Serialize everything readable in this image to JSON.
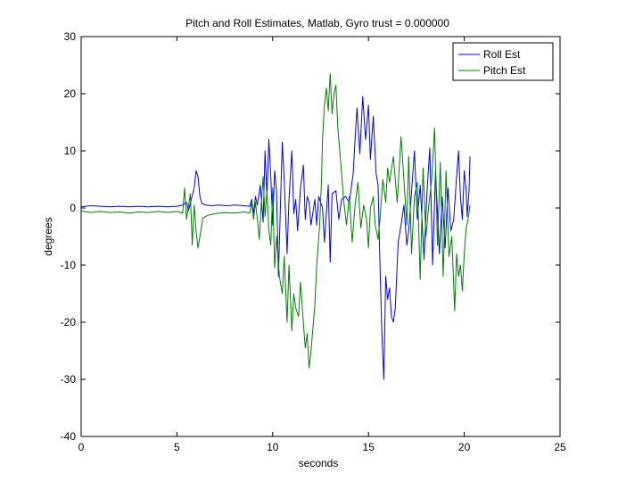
{
  "chart_data": {
    "type": "line",
    "title": "Pitch and Roll Estimates, Matlab, Gyro trust = 0.000000",
    "xlabel": "seconds",
    "ylabel": "degrees",
    "xlim": [
      0,
      25
    ],
    "ylim": [
      -40,
      30
    ],
    "xticks": [
      0,
      5,
      10,
      15,
      20,
      25
    ],
    "yticks": [
      -40,
      -30,
      -20,
      -10,
      0,
      10,
      20,
      30
    ],
    "grid": false,
    "legend_position": "top-right",
    "series": [
      {
        "name": "Roll Est",
        "color": "#0000ff",
        "points": [
          [
            0.0,
            0.2
          ],
          [
            0.5,
            0.4
          ],
          [
            1.0,
            0.3
          ],
          [
            1.5,
            0.2
          ],
          [
            2.0,
            0.3
          ],
          [
            2.5,
            0.2
          ],
          [
            3.0,
            0.3
          ],
          [
            3.5,
            0.2
          ],
          [
            4.0,
            0.3
          ],
          [
            4.5,
            0.2
          ],
          [
            5.0,
            0.3
          ],
          [
            5.3,
            0.5
          ],
          [
            5.5,
            1.0
          ],
          [
            5.6,
            -0.5
          ],
          [
            5.75,
            1.5
          ],
          [
            5.9,
            3.5
          ],
          [
            6.0,
            6.5
          ],
          [
            6.1,
            5.5
          ],
          [
            6.2,
            2.0
          ],
          [
            6.3,
            0.8
          ],
          [
            6.5,
            0.5
          ],
          [
            6.8,
            0.4
          ],
          [
            7.2,
            0.5
          ],
          [
            7.6,
            0.4
          ],
          [
            8.0,
            0.5
          ],
          [
            8.5,
            0.4
          ],
          [
            8.8,
            0.3
          ],
          [
            8.9,
            1.5
          ],
          [
            9.0,
            -1.0
          ],
          [
            9.1,
            2.0
          ],
          [
            9.2,
            0.5
          ],
          [
            9.35,
            4.0
          ],
          [
            9.5,
            -2.5
          ],
          [
            9.6,
            10.0
          ],
          [
            9.7,
            2.0
          ],
          [
            9.8,
            12.0
          ],
          [
            9.9,
            5.5
          ],
          [
            10.0,
            -3.0
          ],
          [
            10.1,
            6.5
          ],
          [
            10.2,
            3.0
          ],
          [
            10.3,
            -12.0
          ],
          [
            10.4,
            0.0
          ],
          [
            10.5,
            11.5
          ],
          [
            10.6,
            5.0
          ],
          [
            10.75,
            -8.0
          ],
          [
            10.85,
            1.5
          ],
          [
            11.0,
            10.0
          ],
          [
            11.1,
            -1.0
          ],
          [
            11.2,
            1.5
          ],
          [
            11.3,
            -4.0
          ],
          [
            11.45,
            3.5
          ],
          [
            11.6,
            7.5
          ],
          [
            11.7,
            -2.0
          ],
          [
            11.8,
            2.0
          ],
          [
            11.9,
            1.0
          ],
          [
            12.0,
            -3.0
          ],
          [
            12.2,
            1.5
          ],
          [
            12.3,
            -3.0
          ],
          [
            12.4,
            2.0
          ],
          [
            12.6,
            0.0
          ],
          [
            12.7,
            -6.0
          ],
          [
            12.9,
            4.0
          ],
          [
            13.0,
            -9.5
          ],
          [
            13.1,
            2.5
          ],
          [
            13.3,
            3.0
          ],
          [
            13.45,
            -2.0
          ],
          [
            13.6,
            1.5
          ],
          [
            13.8,
            2.0
          ],
          [
            14.0,
            1.0
          ],
          [
            14.2,
            6.0
          ],
          [
            14.3,
            12.0
          ],
          [
            14.4,
            17.5
          ],
          [
            14.55,
            9.5
          ],
          [
            14.7,
            19.5
          ],
          [
            14.85,
            12.0
          ],
          [
            15.0,
            18.0
          ],
          [
            15.1,
            8.5
          ],
          [
            15.25,
            16.0
          ],
          [
            15.4,
            6.0
          ],
          [
            15.5,
            4.0
          ],
          [
            15.6,
            -10.0
          ],
          [
            15.7,
            -22.0
          ],
          [
            15.8,
            -30.0
          ],
          [
            15.9,
            -12.0
          ],
          [
            16.0,
            -16.0
          ],
          [
            16.1,
            -14.0
          ],
          [
            16.2,
            -19.0
          ],
          [
            16.3,
            -20.0
          ],
          [
            16.4,
            -17.5
          ],
          [
            16.55,
            -6.0
          ],
          [
            16.7,
            -3.0
          ],
          [
            16.85,
            0.5
          ],
          [
            17.0,
            -6.5
          ],
          [
            17.1,
            -4.0
          ],
          [
            17.25,
            3.0
          ],
          [
            17.4,
            10.0
          ],
          [
            17.55,
            -2.0
          ],
          [
            17.7,
            4.0
          ],
          [
            17.9,
            -9.0
          ],
          [
            18.05,
            2.5
          ],
          [
            18.2,
            10.5
          ],
          [
            18.35,
            -10.0
          ],
          [
            18.5,
            6.5
          ],
          [
            18.7,
            -8.0
          ],
          [
            18.85,
            2.0
          ],
          [
            19.0,
            -7.0
          ],
          [
            19.15,
            3.5
          ],
          [
            19.3,
            -4.0
          ],
          [
            19.45,
            -2.0
          ],
          [
            19.6,
            5.5
          ],
          [
            19.7,
            10.0
          ],
          [
            19.8,
            2.0
          ],
          [
            19.9,
            -2.0
          ],
          [
            20.0,
            6.5
          ],
          [
            20.1,
            3.0
          ],
          [
            20.15,
            -1.5
          ],
          [
            20.25,
            3.0
          ],
          [
            20.3,
            9.0
          ]
        ]
      },
      {
        "name": "Pitch Est",
        "color": "#008000",
        "points": [
          [
            0.0,
            -0.5
          ],
          [
            0.5,
            -0.8
          ],
          [
            1.0,
            -0.6
          ],
          [
            1.5,
            -0.8
          ],
          [
            2.0,
            -0.7
          ],
          [
            2.5,
            -0.9
          ],
          [
            3.0,
            -0.7
          ],
          [
            3.5,
            -0.8
          ],
          [
            4.0,
            -0.6
          ],
          [
            4.5,
            -0.8
          ],
          [
            5.0,
            -0.6
          ],
          [
            5.3,
            -0.9
          ],
          [
            5.4,
            3.5
          ],
          [
            5.5,
            -2.0
          ],
          [
            5.7,
            2.5
          ],
          [
            5.8,
            -6.5
          ],
          [
            5.9,
            0.5
          ],
          [
            6.0,
            -4.0
          ],
          [
            6.1,
            -7.0
          ],
          [
            6.2,
            -5.0
          ],
          [
            6.35,
            -1.8
          ],
          [
            6.6,
            -1.3
          ],
          [
            7.0,
            -1.0
          ],
          [
            7.5,
            -0.8
          ],
          [
            8.0,
            -0.9
          ],
          [
            8.5,
            -0.7
          ],
          [
            8.8,
            -0.9
          ],
          [
            8.9,
            1.0
          ],
          [
            9.0,
            -2.0
          ],
          [
            9.1,
            1.0
          ],
          [
            9.2,
            -2.0
          ],
          [
            9.3,
            -5.5
          ],
          [
            9.4,
            0.5
          ],
          [
            9.5,
            5.5
          ],
          [
            9.6,
            -1.5
          ],
          [
            9.7,
            3.0
          ],
          [
            9.8,
            -4.0
          ],
          [
            9.9,
            -6.5
          ],
          [
            10.0,
            3.5
          ],
          [
            10.1,
            -10.5
          ],
          [
            10.2,
            -5.0
          ],
          [
            10.35,
            -12.0
          ],
          [
            10.5,
            -15.0
          ],
          [
            10.6,
            -8.5
          ],
          [
            10.75,
            -20.0
          ],
          [
            10.85,
            -10.0
          ],
          [
            11.0,
            -21.5
          ],
          [
            11.1,
            -15.0
          ],
          [
            11.2,
            -17.5
          ],
          [
            11.35,
            -19.0
          ],
          [
            11.45,
            -13.0
          ],
          [
            11.6,
            -20.0
          ],
          [
            11.7,
            -24.5
          ],
          [
            11.8,
            -22.0
          ],
          [
            11.9,
            -28.0
          ],
          [
            12.0,
            -25.0
          ],
          [
            12.1,
            -21.0
          ],
          [
            12.2,
            -17.0
          ],
          [
            12.3,
            -10.0
          ],
          [
            12.45,
            -3.0
          ],
          [
            12.55,
            5.0
          ],
          [
            12.6,
            12.0
          ],
          [
            12.7,
            18.0
          ],
          [
            12.8,
            21.0
          ],
          [
            12.9,
            17.0
          ],
          [
            13.0,
            23.5
          ],
          [
            13.1,
            16.5
          ],
          [
            13.2,
            20.0
          ],
          [
            13.3,
            21.5
          ],
          [
            13.4,
            14.0
          ],
          [
            13.5,
            10.0
          ],
          [
            13.6,
            6.0
          ],
          [
            13.7,
            1.5
          ],
          [
            13.85,
            -3.0
          ],
          [
            14.0,
            2.0
          ],
          [
            14.15,
            -6.0
          ],
          [
            14.3,
            0.5
          ],
          [
            14.45,
            4.5
          ],
          [
            14.6,
            -3.5
          ],
          [
            14.75,
            0.5
          ],
          [
            14.9,
            -2.0
          ],
          [
            15.0,
            -7.0
          ],
          [
            15.1,
            0.0
          ],
          [
            15.25,
            2.0
          ],
          [
            15.35,
            -3.0
          ],
          [
            15.5,
            -5.5
          ],
          [
            15.6,
            -2.0
          ],
          [
            15.75,
            5.0
          ],
          [
            15.9,
            1.0
          ],
          [
            16.0,
            7.0
          ],
          [
            16.1,
            4.5
          ],
          [
            16.3,
            9.0
          ],
          [
            16.5,
            1.0
          ],
          [
            16.7,
            12.5
          ],
          [
            16.85,
            5.0
          ],
          [
            17.0,
            -3.0
          ],
          [
            17.1,
            9.0
          ],
          [
            17.25,
            -8.0
          ],
          [
            17.4,
            2.0
          ],
          [
            17.55,
            4.5
          ],
          [
            17.7,
            -12.5
          ],
          [
            17.85,
            7.0
          ],
          [
            18.0,
            -5.0
          ],
          [
            18.15,
            0.5
          ],
          [
            18.3,
            5.0
          ],
          [
            18.45,
            14.0
          ],
          [
            18.6,
            -6.5
          ],
          [
            18.75,
            8.0
          ],
          [
            18.9,
            -12.0
          ],
          [
            19.05,
            6.5
          ],
          [
            19.2,
            -8.5
          ],
          [
            19.35,
            -5.0
          ],
          [
            19.5,
            -18.0
          ],
          [
            19.6,
            -8.0
          ],
          [
            19.7,
            -12.0
          ],
          [
            19.8,
            -10.0
          ],
          [
            19.9,
            -14.5
          ],
          [
            20.0,
            -8.0
          ],
          [
            20.1,
            -3.5
          ],
          [
            20.2,
            -2.0
          ],
          [
            20.3,
            0.5
          ]
        ]
      }
    ]
  }
}
